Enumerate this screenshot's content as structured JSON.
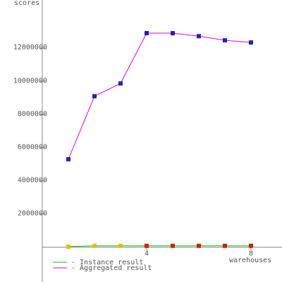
{
  "chart_data": {
    "type": "line",
    "x_label": "warehouses",
    "y_label": "scores",
    "x": [
      1,
      2,
      3,
      4,
      5,
      6,
      7,
      8
    ],
    "series": [
      {
        "name": "- Instance result",
        "color": "#00c000",
        "marker_colors": [
          "#e0c000",
          "#e0c000",
          "#e0c000",
          "#d02000",
          "#d02000",
          "#d02000",
          "#d02000",
          "#d02000"
        ],
        "values": [
          30000,
          80000,
          80000,
          80000,
          80000,
          80000,
          80000,
          80000
        ]
      },
      {
        "name": "- Aggregated result",
        "color": "#e000e0",
        "marker_color": "#2020c0",
        "values": [
          5300000,
          9100000,
          9870000,
          12900000,
          12900000,
          12720000,
          12470000,
          12340000
        ]
      }
    ],
    "xlim": [
      0,
      9.19
    ],
    "xticks": [
      4,
      8
    ],
    "ylim": [
      -2100000,
      14900000
    ],
    "yticks": [
      2000000,
      4000000,
      6000000,
      8000000,
      10000000,
      12000000
    ],
    "legend": "bottom-left"
  }
}
